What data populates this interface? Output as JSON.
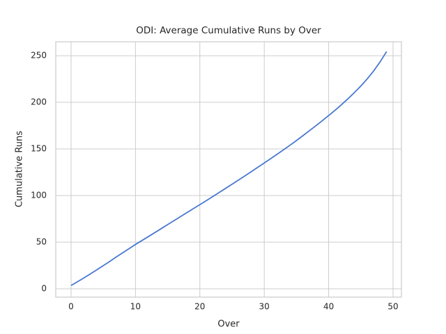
{
  "chart_data": {
    "type": "line",
    "title": "ODI: Average Cumulative Runs by Over",
    "x_label": "Over",
    "y_label": "Cumulative Runs",
    "x": [
      0,
      1,
      2,
      3,
      4,
      5,
      6,
      7,
      8,
      9,
      10,
      11,
      12,
      13,
      14,
      15,
      16,
      17,
      18,
      19,
      20,
      21,
      22,
      23,
      24,
      25,
      26,
      27,
      28,
      29,
      30,
      31,
      32,
      33,
      34,
      35,
      36,
      37,
      38,
      39,
      40,
      41,
      42,
      43,
      44,
      45,
      46,
      47,
      48,
      49
    ],
    "series": [
      {
        "name": "Cumulative Runs",
        "color": "#4878d0",
        "values": [
          3.5,
          7.5,
          11.6,
          15.9,
          20.3,
          24.8,
          29.3,
          34,
          38.5,
          43,
          47.5,
          51.7,
          55.9,
          60.2,
          64.5,
          68.8,
          73.1,
          77.4,
          81.7,
          86,
          90.2,
          94.5,
          98.9,
          103.3,
          107.7,
          112.1,
          116.6,
          121.1,
          125.7,
          130.3,
          134.9,
          139.6,
          144.3,
          149.1,
          154,
          159,
          164.2,
          169.5,
          174.8,
          180.2,
          185.8,
          191.5,
          197.5,
          203.8,
          210.5,
          217.5,
          225.2,
          233.8,
          243.5,
          254.5
        ]
      }
    ],
    "xlim": [
      -2.38,
      51.3
    ],
    "ylim": [
      -9,
      265
    ],
    "xticks": [
      0,
      10,
      20,
      30,
      40,
      50
    ],
    "yticks": [
      0,
      50,
      100,
      150,
      200,
      250
    ],
    "grid": true
  }
}
